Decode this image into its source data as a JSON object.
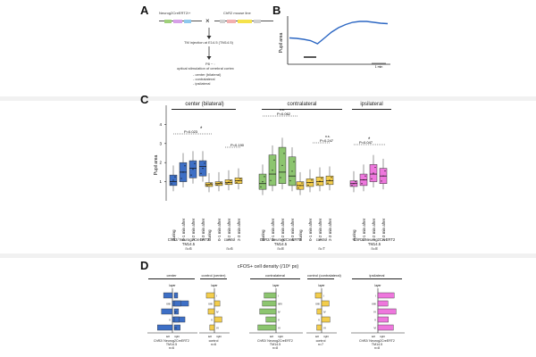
{
  "panels": {
    "A": {
      "letter": "A",
      "mouse_left": "Neurog2CreERT2/+",
      "cross": "×",
      "mouse_right": "ChR2 mouse line",
      "tm_injection": "TM injection at E14.5 (TM14.5)",
      "p8_line1": "P8 ~ :",
      "p8_line2": "optical stimulation of cerebral cortex",
      "stim_list": [
        "- center (bilateral)",
        "- contralateral",
        "- ipsilateral"
      ]
    },
    "B": {
      "letter": "B",
      "ylabel": "Pupil area",
      "scale_label": "1 min"
    },
    "C": {
      "letter": "C",
      "ylabel": "Pupil area",
      "sections": [
        "center (bilateral)",
        "contralateral",
        "ipsilateral"
      ],
      "p_labels": [
        "P=0.023",
        "P=0.190",
        "P=0.062",
        "P=0.247",
        "P=0.047"
      ],
      "ns_labels": [
        "n.s.",
        "n.s."
      ],
      "star": "*",
      "cats_chr2": [
        "during",
        "0-1 min after",
        "1-2 min after",
        "2-3 min after"
      ],
      "cats_ctrl": [
        "during",
        "0-1 min after",
        "1-2 min after",
        "2-3 min after"
      ],
      "group_chr2_line1": "ChR2/ Neurog2CreERT2",
      "group_chr2_line2": "TM14.5",
      "group_control": "control",
      "n_center_chr2": "n=6",
      "n_center_ctrl": "n=6",
      "n_contra_chr2": "n=8",
      "n_contra_ctrl": "n=7",
      "n_ipsi_chr2": "n=8"
    },
    "D": {
      "letter": "D",
      "title": "cFOS+ cell density (/10⁶ px)",
      "sections": [
        "center",
        "control (center)",
        "contralateral",
        "control (contralateral)",
        "ipsilateral"
      ],
      "layer_label": "layer",
      "layers": [
        "I",
        "II/III",
        "IV",
        "V",
        "VI"
      ],
      "side_left": "left",
      "side_right": "right",
      "groups": [
        {
          "l1": "ChR2/ Neurog2CreERT2",
          "l2": "TM14.5",
          "n": "n=6"
        },
        {
          "l1": "control",
          "l2": "",
          "n": "n=6"
        },
        {
          "l1": "ChR2/ Neurog2CreERT2",
          "l2": "TM14.5",
          "n": "n=8"
        },
        {
          "l1": "control",
          "l2": "",
          "n": "n=7"
        },
        {
          "l1": "ChR2/ Neurog2CreERT2",
          "l2": "TM14.5",
          "n": "n=8"
        }
      ]
    }
  },
  "colors": {
    "blue": "#3d6fc6",
    "green": "#8cc56f",
    "yellow": "#f3cd4c",
    "pink": "#ee77dd",
    "trace": "#2c67c3"
  },
  "chart_data": [
    {
      "type": "line",
      "panel": "B",
      "ylabel": "Pupil area",
      "x_unit": "min",
      "x": [
        0,
        0.5,
        1,
        1.5,
        2,
        2.5,
        3,
        3.5,
        4,
        4.5,
        5,
        5.5,
        6,
        6.5,
        7
      ],
      "y": [
        0.55,
        0.54,
        0.52,
        0.49,
        0.42,
        0.55,
        0.68,
        0.78,
        0.85,
        0.9,
        0.92,
        0.92,
        0.9,
        0.88,
        0.87
      ],
      "annotations": [
        "1 min"
      ]
    },
    {
      "type": "bar",
      "panel": "C",
      "ylabel": "Pupil area",
      "ylim": [
        0,
        5
      ],
      "series": [
        {
          "name": "center ChR2",
          "categories": [
            "during",
            "0-1 min after",
            "1-2 min after",
            "2-3 min after"
          ],
          "medians": [
            1.0,
            1.5,
            1.7,
            1.8
          ]
        },
        {
          "name": "center control",
          "categories": [
            "during",
            "0-1 min after",
            "1-2 min after",
            "2-3 min after"
          ],
          "medians": [
            0.85,
            0.9,
            0.95,
            1.05
          ]
        },
        {
          "name": "contralateral ChR2",
          "categories": [
            "during",
            "0-1 min after",
            "1-2 min after",
            "2-3 min after"
          ],
          "medians": [
            0.9,
            1.4,
            1.5,
            1.3
          ]
        },
        {
          "name": "contralateral control",
          "categories": [
            "during",
            "0-1 min after",
            "1-2 min after",
            "2-3 min after"
          ],
          "medians": [
            0.8,
            0.95,
            1.0,
            1.05
          ]
        },
        {
          "name": "ipsilateral ChR2",
          "categories": [
            "during",
            "0-1 min after",
            "1-2 min after",
            "2-3 min after"
          ],
          "medians": [
            0.9,
            1.1,
            1.4,
            1.3
          ]
        }
      ]
    }
  ]
}
